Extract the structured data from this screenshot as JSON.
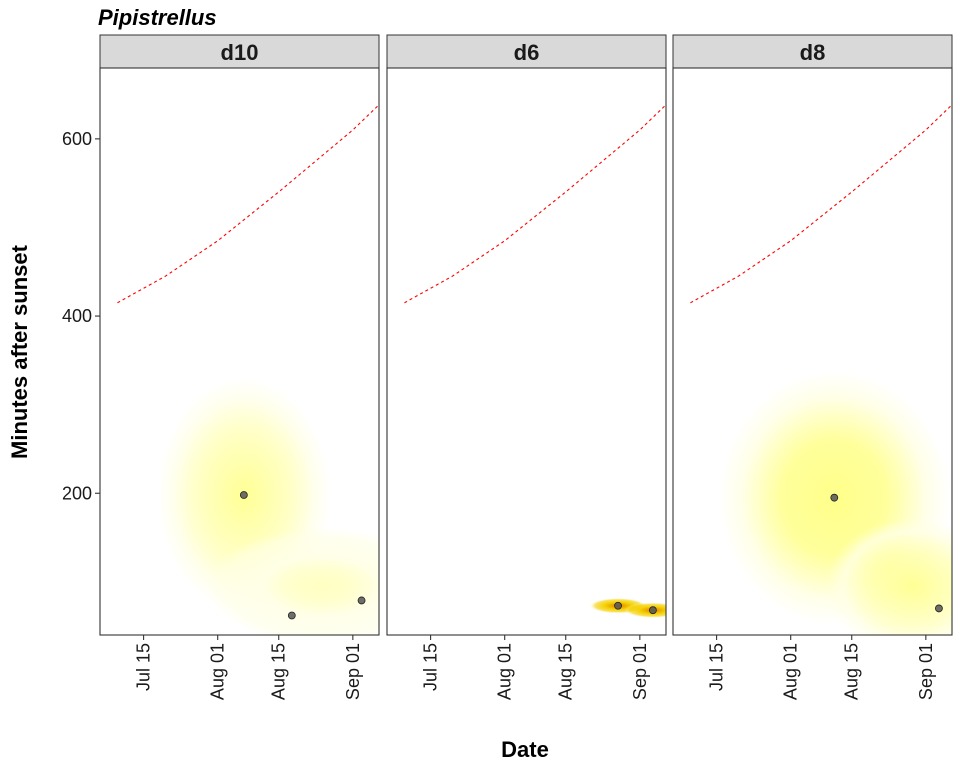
{
  "chart_data": {
    "type": "scatter",
    "title": "Pipistrellus",
    "xlabel": "Date",
    "ylabel": "Minutes after sunset",
    "x_ticks": [
      "Jul 15",
      "Aug 01",
      "Aug 15",
      "Sep 01"
    ],
    "y_ticks": [
      200,
      400,
      600
    ],
    "xlim": [
      "2021-07-05",
      "2021-09-07"
    ],
    "ylim": [
      40,
      680
    ],
    "grid": false,
    "reference_line": {
      "style": "dashed",
      "color": "#ff0000",
      "points": [
        {
          "x": "2021-07-09",
          "y": 415
        },
        {
          "x": "2021-07-20",
          "y": 445
        },
        {
          "x": "2021-08-01",
          "y": 485
        },
        {
          "x": "2021-08-15",
          "y": 540
        },
        {
          "x": "2021-09-01",
          "y": 610
        },
        {
          "x": "2021-09-09",
          "y": 648
        }
      ]
    },
    "density_colors": [
      "#ffffe6",
      "#ffff8a",
      "#f5d000",
      "#e08000"
    ],
    "point_color": "#555555",
    "panels": [
      {
        "name": "d10",
        "points": [
          {
            "x": "2021-08-07",
            "y": 198
          },
          {
            "x": "2021-08-18",
            "y": 62
          },
          {
            "x": "2021-09-03",
            "y": 79
          }
        ],
        "density": [
          {
            "x": "2021-08-07",
            "y": 198,
            "intensity": 0.45,
            "spread_days": 9,
            "spread_min": 60
          },
          {
            "x": "2021-08-25",
            "y": 95,
            "intensity": 0.3,
            "spread_days": 12,
            "spread_min": 30
          }
        ]
      },
      {
        "name": "d6",
        "points": [
          {
            "x": "2021-08-27",
            "y": 73
          },
          {
            "x": "2021-09-04",
            "y": 68
          }
        ],
        "density": [
          {
            "x": "2021-08-27",
            "y": 73,
            "intensity": 1.0,
            "spread_days": 3,
            "spread_min": 4
          },
          {
            "x": "2021-09-04",
            "y": 68,
            "intensity": 0.9,
            "spread_days": 3,
            "spread_min": 4
          }
        ]
      },
      {
        "name": "d8",
        "points": [
          {
            "x": "2021-08-11",
            "y": 195
          },
          {
            "x": "2021-09-04",
            "y": 70
          }
        ],
        "density": [
          {
            "x": "2021-08-11",
            "y": 195,
            "intensity": 0.65,
            "spread_days": 12,
            "spread_min": 65
          },
          {
            "x": "2021-08-29",
            "y": 95,
            "intensity": 0.4,
            "spread_days": 9,
            "spread_min": 35
          }
        ]
      }
    ]
  }
}
